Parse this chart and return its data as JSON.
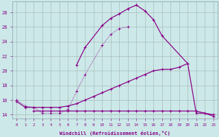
{
  "xlabel": "Windchill (Refroidissement éolien,°C)",
  "bg_color": "#cce8e8",
  "grid_color": "#aabbbb",
  "line_color": "#880088",
  "spine_color": "#8899aa",
  "xlim": [
    -0.5,
    23.5
  ],
  "ylim": [
    13.5,
    29.5
  ],
  "x_ticks": [
    0,
    1,
    2,
    3,
    4,
    5,
    6,
    7,
    8,
    9,
    10,
    11,
    12,
    13,
    14,
    15,
    16,
    17,
    18,
    19,
    20,
    21,
    22,
    23
  ],
  "y_ticks": [
    14,
    16,
    18,
    20,
    22,
    24,
    26,
    28
  ],
  "lines": [
    {
      "x": [
        0,
        1,
        2,
        3,
        4,
        5,
        6,
        7,
        8,
        10,
        11,
        12,
        13
      ],
      "y": [
        16.0,
        15.2,
        15.0,
        14.2,
        14.2,
        14.2,
        14.7,
        17.2,
        19.5,
        23.5,
        25.0,
        25.8,
        26.0
      ],
      "style": "dotted"
    },
    {
      "x": [
        7,
        8,
        10,
        11,
        12,
        13,
        14,
        15,
        16,
        17,
        20
      ],
      "y": [
        20.8,
        23.2,
        26.2,
        27.2,
        27.8,
        28.5,
        29.0,
        28.2,
        27.0,
        24.8,
        21.0
      ],
      "style": "solid_marker"
    },
    {
      "x": [
        0,
        1,
        2,
        3,
        4,
        5,
        6,
        7,
        8,
        9,
        10,
        11,
        12,
        13,
        14,
        15,
        16,
        17,
        18,
        19,
        20,
        21,
        22,
        23
      ],
      "y": [
        15.8,
        15.0,
        15.0,
        15.0,
        15.0,
        15.0,
        15.2,
        15.5,
        16.0,
        16.5,
        17.0,
        17.5,
        18.0,
        18.5,
        19.0,
        19.5,
        20.0,
        20.2,
        20.2,
        20.5,
        21.0,
        14.2,
        14.2,
        14.0
      ],
      "style": "solid_marker"
    },
    {
      "x": [
        2,
        3,
        4,
        5,
        6,
        7,
        8,
        9,
        10,
        11,
        12,
        13,
        14,
        15,
        16,
        17,
        18,
        19,
        20,
        21,
        22,
        23
      ],
      "y": [
        14.5,
        14.5,
        14.5,
        14.5,
        14.5,
        14.5,
        14.5,
        14.5,
        14.5,
        14.5,
        14.5,
        14.5,
        14.5,
        14.5,
        14.5,
        14.5,
        14.5,
        14.5,
        14.5,
        14.5,
        14.2,
        13.8
      ],
      "style": "solid_marker"
    }
  ]
}
